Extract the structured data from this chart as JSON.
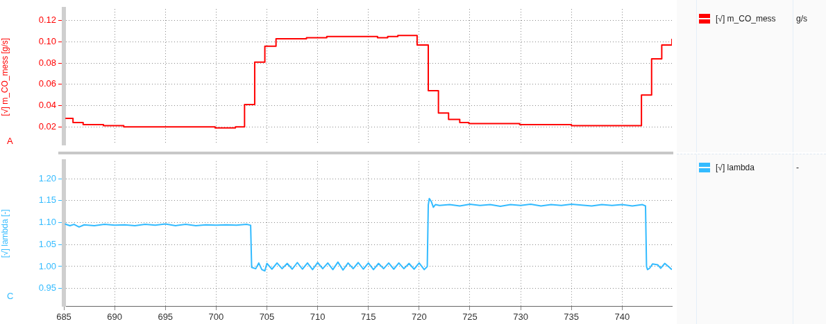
{
  "chart_data": [
    {
      "type": "step",
      "ylabel": "[√] m_CO_mess [g/s]",
      "annotations": [
        "A",
        "g/s"
      ],
      "xlim": [
        685,
        744.9
      ],
      "xticks": [
        685,
        690,
        695,
        700,
        705,
        710,
        715,
        720,
        725,
        730,
        735,
        740
      ],
      "ylim": [
        0.003,
        0.131
      ],
      "yticks": [
        0.02,
        0.04,
        0.06,
        0.08,
        {
          "value": 0.1,
          "label": "0.10"
        },
        0.12
      ],
      "tick_labels": "y",
      "grid": true,
      "legend": "right",
      "marker": "none",
      "series": [
        {
          "name": "[√] m_CO_mess",
          "color": "#ff0000",
          "x": [
            685.15,
            685.9,
            686.9,
            688.9,
            690.9,
            699.9,
            701.9,
            702.8,
            703.8,
            704.8,
            705.9,
            708.9,
            710.9,
            715.9,
            716.9,
            717.9,
            719.8,
            720.9,
            721.9,
            722.9,
            724,
            724.9,
            729.9,
            735,
            741.9,
            742.9,
            743.9,
            744.9
          ],
          "values": [
            0.028,
            0.024,
            0.022,
            0.021,
            0.02,
            0.019,
            0.02,
            0.041,
            0.081,
            0.096,
            0.103,
            0.104,
            0.105,
            0.104,
            0.105,
            0.106,
            0.097,
            0.054,
            0.033,
            0.027,
            0.024,
            0.023,
            0.022,
            0.021,
            0.05,
            0.084,
            0.097,
            0.103
          ]
        }
      ]
    },
    {
      "type": "line",
      "ylabel": "[√] lambda [-]",
      "annotations": [
        "C",
        "-"
      ],
      "xlim": [
        685,
        744.9
      ],
      "xticks": [
        685,
        690,
        695,
        700,
        705,
        710,
        715,
        720,
        725,
        730,
        735,
        740
      ],
      "ylim": [
        0.91,
        1.24
      ],
      "yticks": [
        0.95,
        {
          "value": 1,
          "label": "1.00"
        },
        1.05,
        {
          "value": 1.1,
          "label": "1.10"
        },
        1.15,
        {
          "value": 1.2,
          "label": "1.20"
        }
      ],
      "grid": true,
      "legend": "right",
      "marker": "none",
      "series": [
        {
          "name": "[√] lambda",
          "color": "#33bbff",
          "x": [
            685.1,
            685.6,
            686,
            686.5,
            687,
            688,
            689,
            690,
            691,
            692,
            693,
            694,
            695,
            696,
            697,
            698,
            699,
            700,
            701,
            702,
            703,
            703.4,
            703.5,
            703.9,
            704.2,
            704.5,
            704.8,
            705,
            705.5,
            706,
            706.5,
            707,
            707.5,
            708,
            708.5,
            709,
            709.5,
            710,
            710.5,
            711,
            711.5,
            712,
            712.5,
            713,
            713.5,
            714,
            714.5,
            715,
            715.5,
            716,
            716.5,
            717,
            717.5,
            718,
            718.5,
            719,
            719.5,
            720,
            720.5,
            720.8,
            720.9,
            721,
            721.2,
            721.4,
            721.6,
            722,
            723,
            724,
            725,
            726,
            727,
            728,
            729,
            730,
            731,
            732,
            733,
            734,
            735,
            736,
            737,
            738,
            739,
            740,
            741,
            742,
            742.3,
            742.4,
            742.5,
            742.7,
            743,
            743.5,
            743.8,
            744.2,
            744.6,
            744.9
          ],
          "values": [
            1.097,
            1.093,
            1.096,
            1.09,
            1.095,
            1.093,
            1.096,
            1.094,
            1.095,
            1.093,
            1.096,
            1.094,
            1.097,
            1.093,
            1.096,
            1.093,
            1.095,
            1.094,
            1.095,
            1.094,
            1.096,
            1.094,
            0.998,
            0.995,
            1.008,
            0.993,
            0.99,
            1.007,
            0.994,
            1.008,
            0.995,
            1.007,
            0.994,
            1.009,
            0.994,
            1.008,
            0.993,
            1.009,
            0.995,
            1.008,
            0.993,
            1.01,
            0.992,
            1.008,
            0.995,
            1.009,
            0.994,
            1.008,
            0.993,
            1.007,
            0.995,
            1.008,
            0.994,
            1.008,
            0.995,
            1.007,
            0.994,
            1.008,
            0.993,
            1,
            1.14,
            1.155,
            1.148,
            1.135,
            1.141,
            1.139,
            1.141,
            1.138,
            1.142,
            1.139,
            1.141,
            1.137,
            1.141,
            1.139,
            1.142,
            1.138,
            1.141,
            1.139,
            1.142,
            1.14,
            1.138,
            1.141,
            1.139,
            1.141,
            1.138,
            1.141,
            1.138,
            1,
            0.993,
            0.996,
            1.006,
            1.004,
            0.996,
            1.007,
            0.999,
            0.993
          ]
        }
      ]
    }
  ]
}
